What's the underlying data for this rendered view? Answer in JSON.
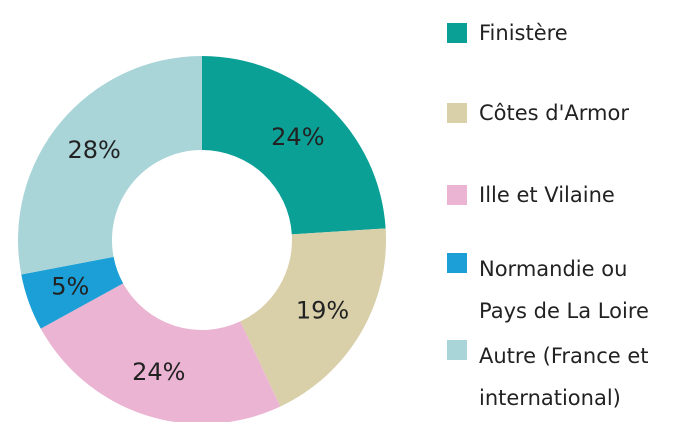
{
  "chart_data": {
    "type": "donut",
    "categories": [
      "Finistère",
      "Côtes d'Armor",
      "Ille et Vilaine",
      "Normandie ou Pays de La Loire",
      "Autre (France et international)"
    ],
    "values": [
      24,
      19,
      24,
      5,
      28
    ],
    "value_labels": [
      "24%",
      "19%",
      "24%",
      "5%",
      "28%"
    ],
    "colors": [
      "#0aa096",
      "#d9d0aa",
      "#ebb4d2",
      "#1b9fd6",
      "#a9d5d8"
    ],
    "legend": "right"
  }
}
